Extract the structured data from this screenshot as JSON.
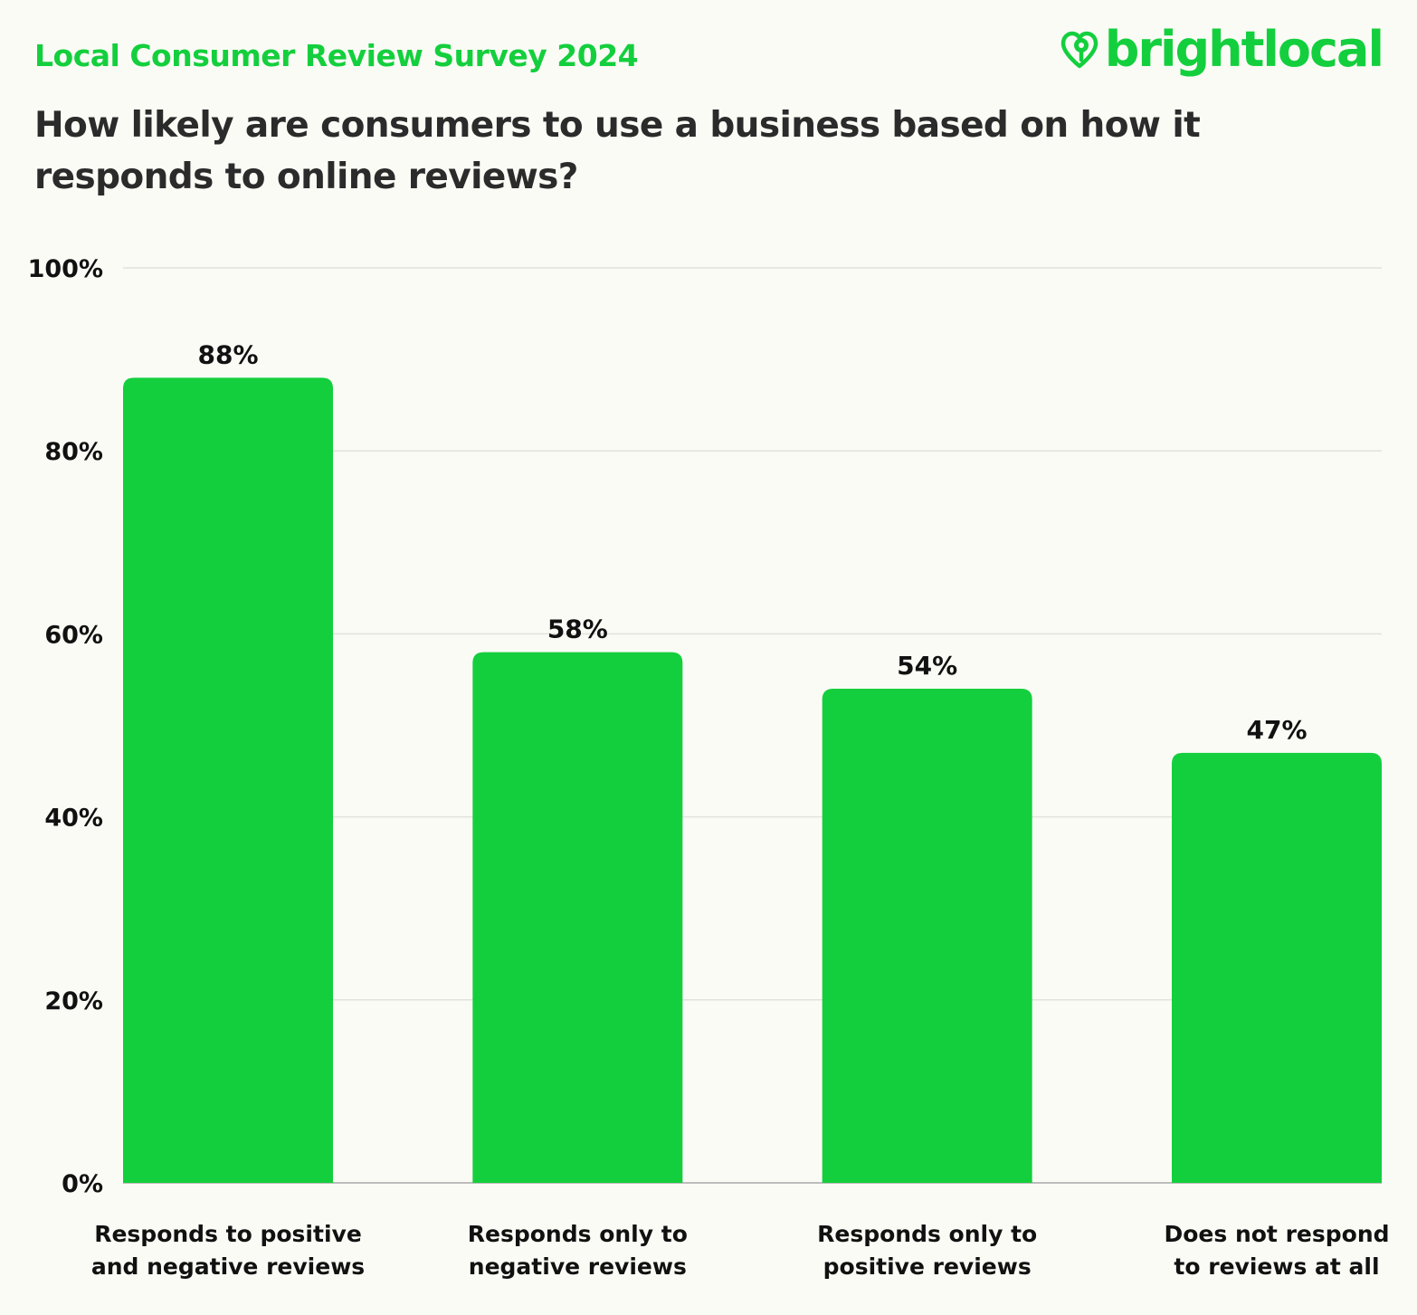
{
  "header": {
    "survey_title": "Local Consumer Review Survey 2024",
    "brand": "brightlocal",
    "brand_color": "#14cf3d",
    "logo_icon": "heart-pin-icon"
  },
  "chart_data": {
    "type": "bar",
    "title": "How likely are consumers to use a business based on how it responds to online reviews?",
    "categories": [
      [
        "Responds to positive",
        "and negative reviews"
      ],
      [
        "Responds only to",
        "negative reviews"
      ],
      [
        "Responds only to",
        "positive reviews"
      ],
      [
        "Does not respond",
        "to reviews at all"
      ]
    ],
    "values": [
      88,
      58,
      54,
      47
    ],
    "value_labels": [
      "88%",
      "58%",
      "54%",
      "47%"
    ],
    "ylim": [
      0,
      100
    ],
    "yticks": [
      0,
      20,
      40,
      60,
      80,
      100
    ],
    "ytick_labels": [
      "0%",
      "20%",
      "40%",
      "60%",
      "80%",
      "100%"
    ],
    "xlabel": "",
    "ylabel": "",
    "grid": true,
    "bar_color": "#14cf3d"
  }
}
